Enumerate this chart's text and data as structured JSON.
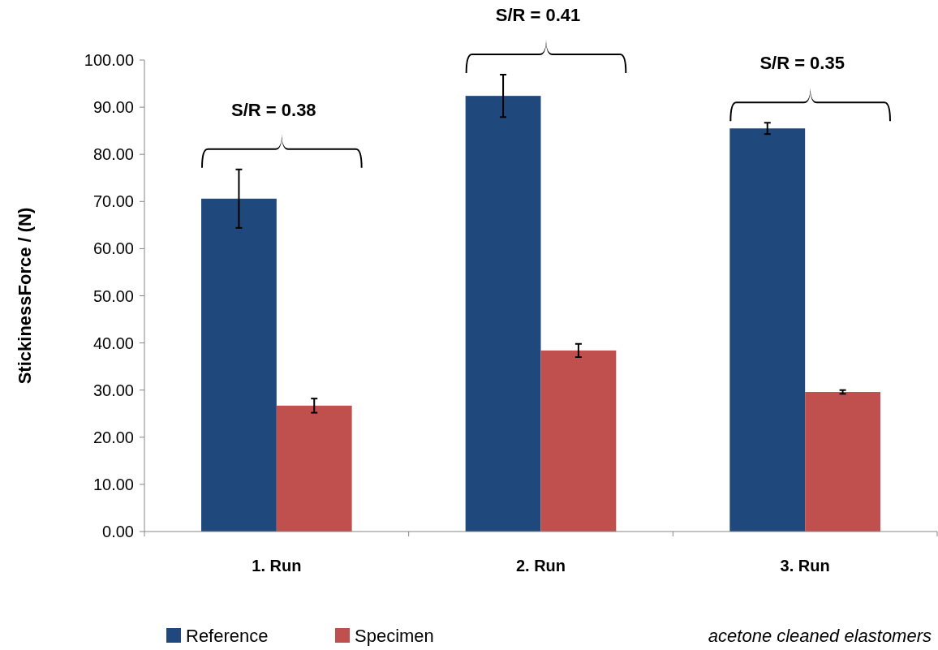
{
  "chart_data": {
    "type": "bar",
    "ylabel": "StickinessForce / (N)",
    "categories": [
      "1. Run",
      "2. Run",
      "3. Run"
    ],
    "series": [
      {
        "name": "Reference",
        "color": "#1f497d",
        "values": [
          70.6,
          92.4,
          85.5
        ],
        "errors": [
          6.2,
          4.5,
          1.2
        ]
      },
      {
        "name": "Specimen",
        "color": "#c0504d",
        "values": [
          26.7,
          38.4,
          29.6
        ],
        "errors": [
          1.5,
          1.4,
          0.4
        ]
      }
    ],
    "ylim": [
      0,
      100
    ],
    "yticks": [
      {
        "value": 0,
        "label": "0.00"
      },
      {
        "value": 10,
        "label": "10.00"
      },
      {
        "value": 20,
        "label": "20.00"
      },
      {
        "value": 30,
        "label": "30.00"
      },
      {
        "value": 40,
        "label": "40.00"
      },
      {
        "value": 50,
        "label": "50.00"
      },
      {
        "value": 60,
        "label": "60.00"
      },
      {
        "value": 70,
        "label": "70.00"
      },
      {
        "value": 80,
        "label": "80.00"
      },
      {
        "value": 90,
        "label": "90.00"
      },
      {
        "value": 100,
        "label": "100.00"
      }
    ],
    "grid": false,
    "legend": "bottom",
    "annotations": [
      "S/R = 0.38",
      "S/R = 0.41",
      "S/R = 0.35",
      "acetone cleaned elastomers"
    ]
  }
}
